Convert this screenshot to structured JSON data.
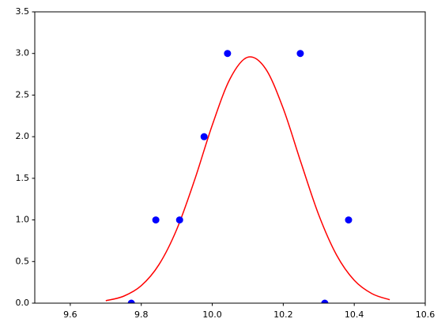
{
  "chart_data": {
    "type": "scatter",
    "xlim": [
      9.5,
      10.6
    ],
    "xticks": [
      9.6,
      9.8,
      {
        "value": 10,
        "label": "10.0"
      },
      10.2,
      10.4,
      10.6
    ],
    "ylim": [
      0,
      3.5
    ],
    "yticks": [
      {
        "value": 0,
        "label": "0.0"
      },
      0.5,
      {
        "value": 1,
        "label": "1.0"
      },
      1.5,
      {
        "value": 2,
        "label": "2.0"
      },
      2.5,
      {
        "value": 3,
        "label": "3.0"
      },
      3.5
    ],
    "grid": false,
    "series": [
      {
        "type": "scatter",
        "color": "#0000ff",
        "x": [
          9.772,
          9.841,
          9.908,
          9.977,
          10.043,
          10.248,
          10.317,
          10.384
        ],
        "values": [
          0,
          1,
          1,
          2,
          3,
          3,
          0,
          1
        ]
      },
      {
        "type": "line",
        "color": "#ff0000",
        "x": [
          9.7,
          9.75,
          9.8,
          9.85,
          9.9,
          9.95,
          10.0,
          10.05,
          10.1,
          10.15,
          10.2,
          10.25,
          10.3,
          10.35,
          10.4,
          10.45,
          10.5
        ],
        "values": [
          0.029,
          0.083,
          0.21,
          0.464,
          0.887,
          1.477,
          2.139,
          2.695,
          2.955,
          2.818,
          2.338,
          1.688,
          1.06,
          0.58,
          0.275,
          0.114,
          0.041
        ]
      }
    ]
  }
}
